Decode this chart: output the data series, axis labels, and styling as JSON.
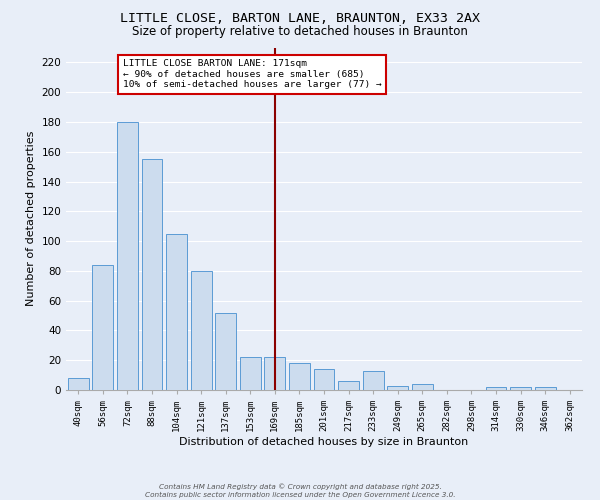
{
  "title": "LITTLE CLOSE, BARTON LANE, BRAUNTON, EX33 2AX",
  "subtitle": "Size of property relative to detached houses in Braunton",
  "xlabel": "Distribution of detached houses by size in Braunton",
  "ylabel": "Number of detached properties",
  "bar_labels": [
    "40sqm",
    "56sqm",
    "72sqm",
    "88sqm",
    "104sqm",
    "121sqm",
    "137sqm",
    "153sqm",
    "169sqm",
    "185sqm",
    "201sqm",
    "217sqm",
    "233sqm",
    "249sqm",
    "265sqm",
    "282sqm",
    "298sqm",
    "314sqm",
    "330sqm",
    "346sqm",
    "362sqm"
  ],
  "bar_heights": [
    8,
    84,
    180,
    155,
    105,
    80,
    52,
    22,
    22,
    18,
    14,
    6,
    13,
    3,
    4,
    0,
    0,
    2,
    2,
    2,
    0
  ],
  "bar_color": "#ccdcee",
  "bar_edge_color": "#5b9bd5",
  "vline_x": 8,
  "vline_color": "#8b0000",
  "annotation_title": "LITTLE CLOSE BARTON LANE: 171sqm",
  "annotation_line1": "← 90% of detached houses are smaller (685)",
  "annotation_line2": "10% of semi-detached houses are larger (77) →",
  "annotation_box_color": "#ffffff",
  "annotation_border_color": "#cc0000",
  "ylim": [
    0,
    230
  ],
  "yticks": [
    0,
    20,
    40,
    60,
    80,
    100,
    120,
    140,
    160,
    180,
    200,
    220
  ],
  "bg_color": "#e8eef8",
  "axes_bg_color": "#e8eef8",
  "grid_color": "#ffffff",
  "footer": "Contains HM Land Registry data © Crown copyright and database right 2025.\nContains public sector information licensed under the Open Government Licence 3.0.",
  "title_fontsize": 9.5,
  "subtitle_fontsize": 8.5,
  "xlabel_fontsize": 8,
  "ylabel_fontsize": 8
}
